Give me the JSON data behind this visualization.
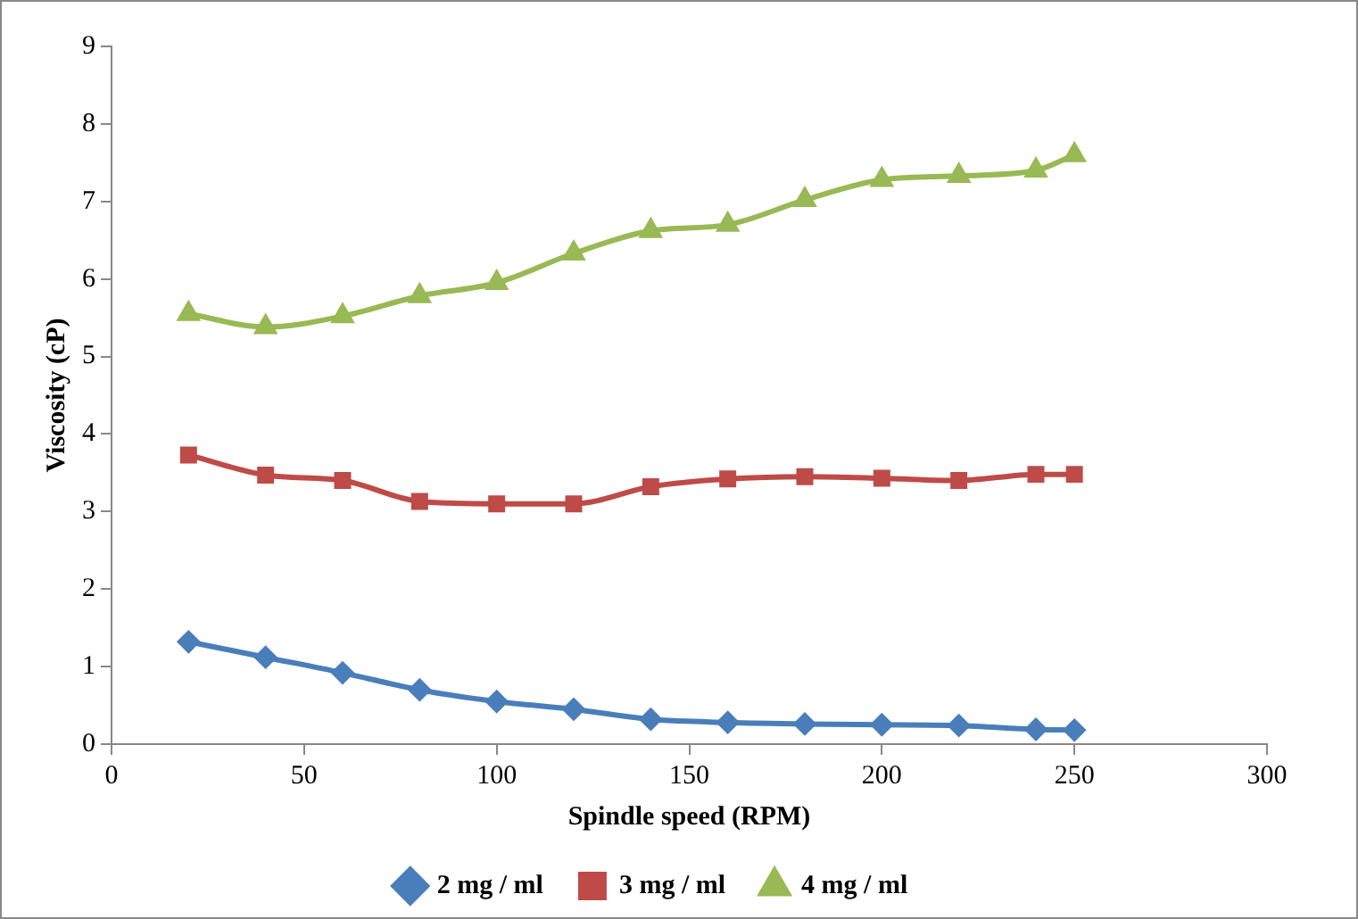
{
  "chart_data": {
    "type": "line",
    "xlabel": "Spindle speed (RPM)",
    "ylabel": "Viscosity (cP)",
    "x": [
      20,
      40,
      60,
      80,
      100,
      120,
      140,
      160,
      180,
      200,
      220,
      240,
      250
    ],
    "series": [
      {
        "name": "2 mg / ml",
        "color": "#4a7ebb",
        "marker": "diamond",
        "values": [
          1.32,
          1.12,
          0.92,
          0.7,
          0.55,
          0.45,
          0.32,
          0.28,
          0.26,
          0.25,
          0.24,
          0.19,
          0.18
        ]
      },
      {
        "name": "3 mg / ml",
        "color": "#be4b48",
        "marker": "square",
        "values": [
          3.73,
          3.47,
          3.4,
          3.13,
          3.1,
          3.1,
          3.32,
          3.42,
          3.45,
          3.43,
          3.4,
          3.48,
          3.48
        ]
      },
      {
        "name": "4 mg / ml",
        "color": "#98b954",
        "marker": "triangle",
        "values": [
          5.55,
          5.38,
          5.52,
          5.78,
          5.95,
          6.33,
          6.62,
          6.7,
          7.02,
          7.28,
          7.33,
          7.4,
          7.6
        ]
      }
    ],
    "xlim": [
      0,
      300
    ],
    "xticks": [
      0,
      50,
      100,
      150,
      200,
      250,
      300
    ],
    "ylim": [
      0,
      9
    ],
    "yticks": [
      0,
      1,
      2,
      3,
      4,
      5,
      6,
      7,
      8,
      9
    ],
    "grid": false,
    "legend": "bottom"
  }
}
